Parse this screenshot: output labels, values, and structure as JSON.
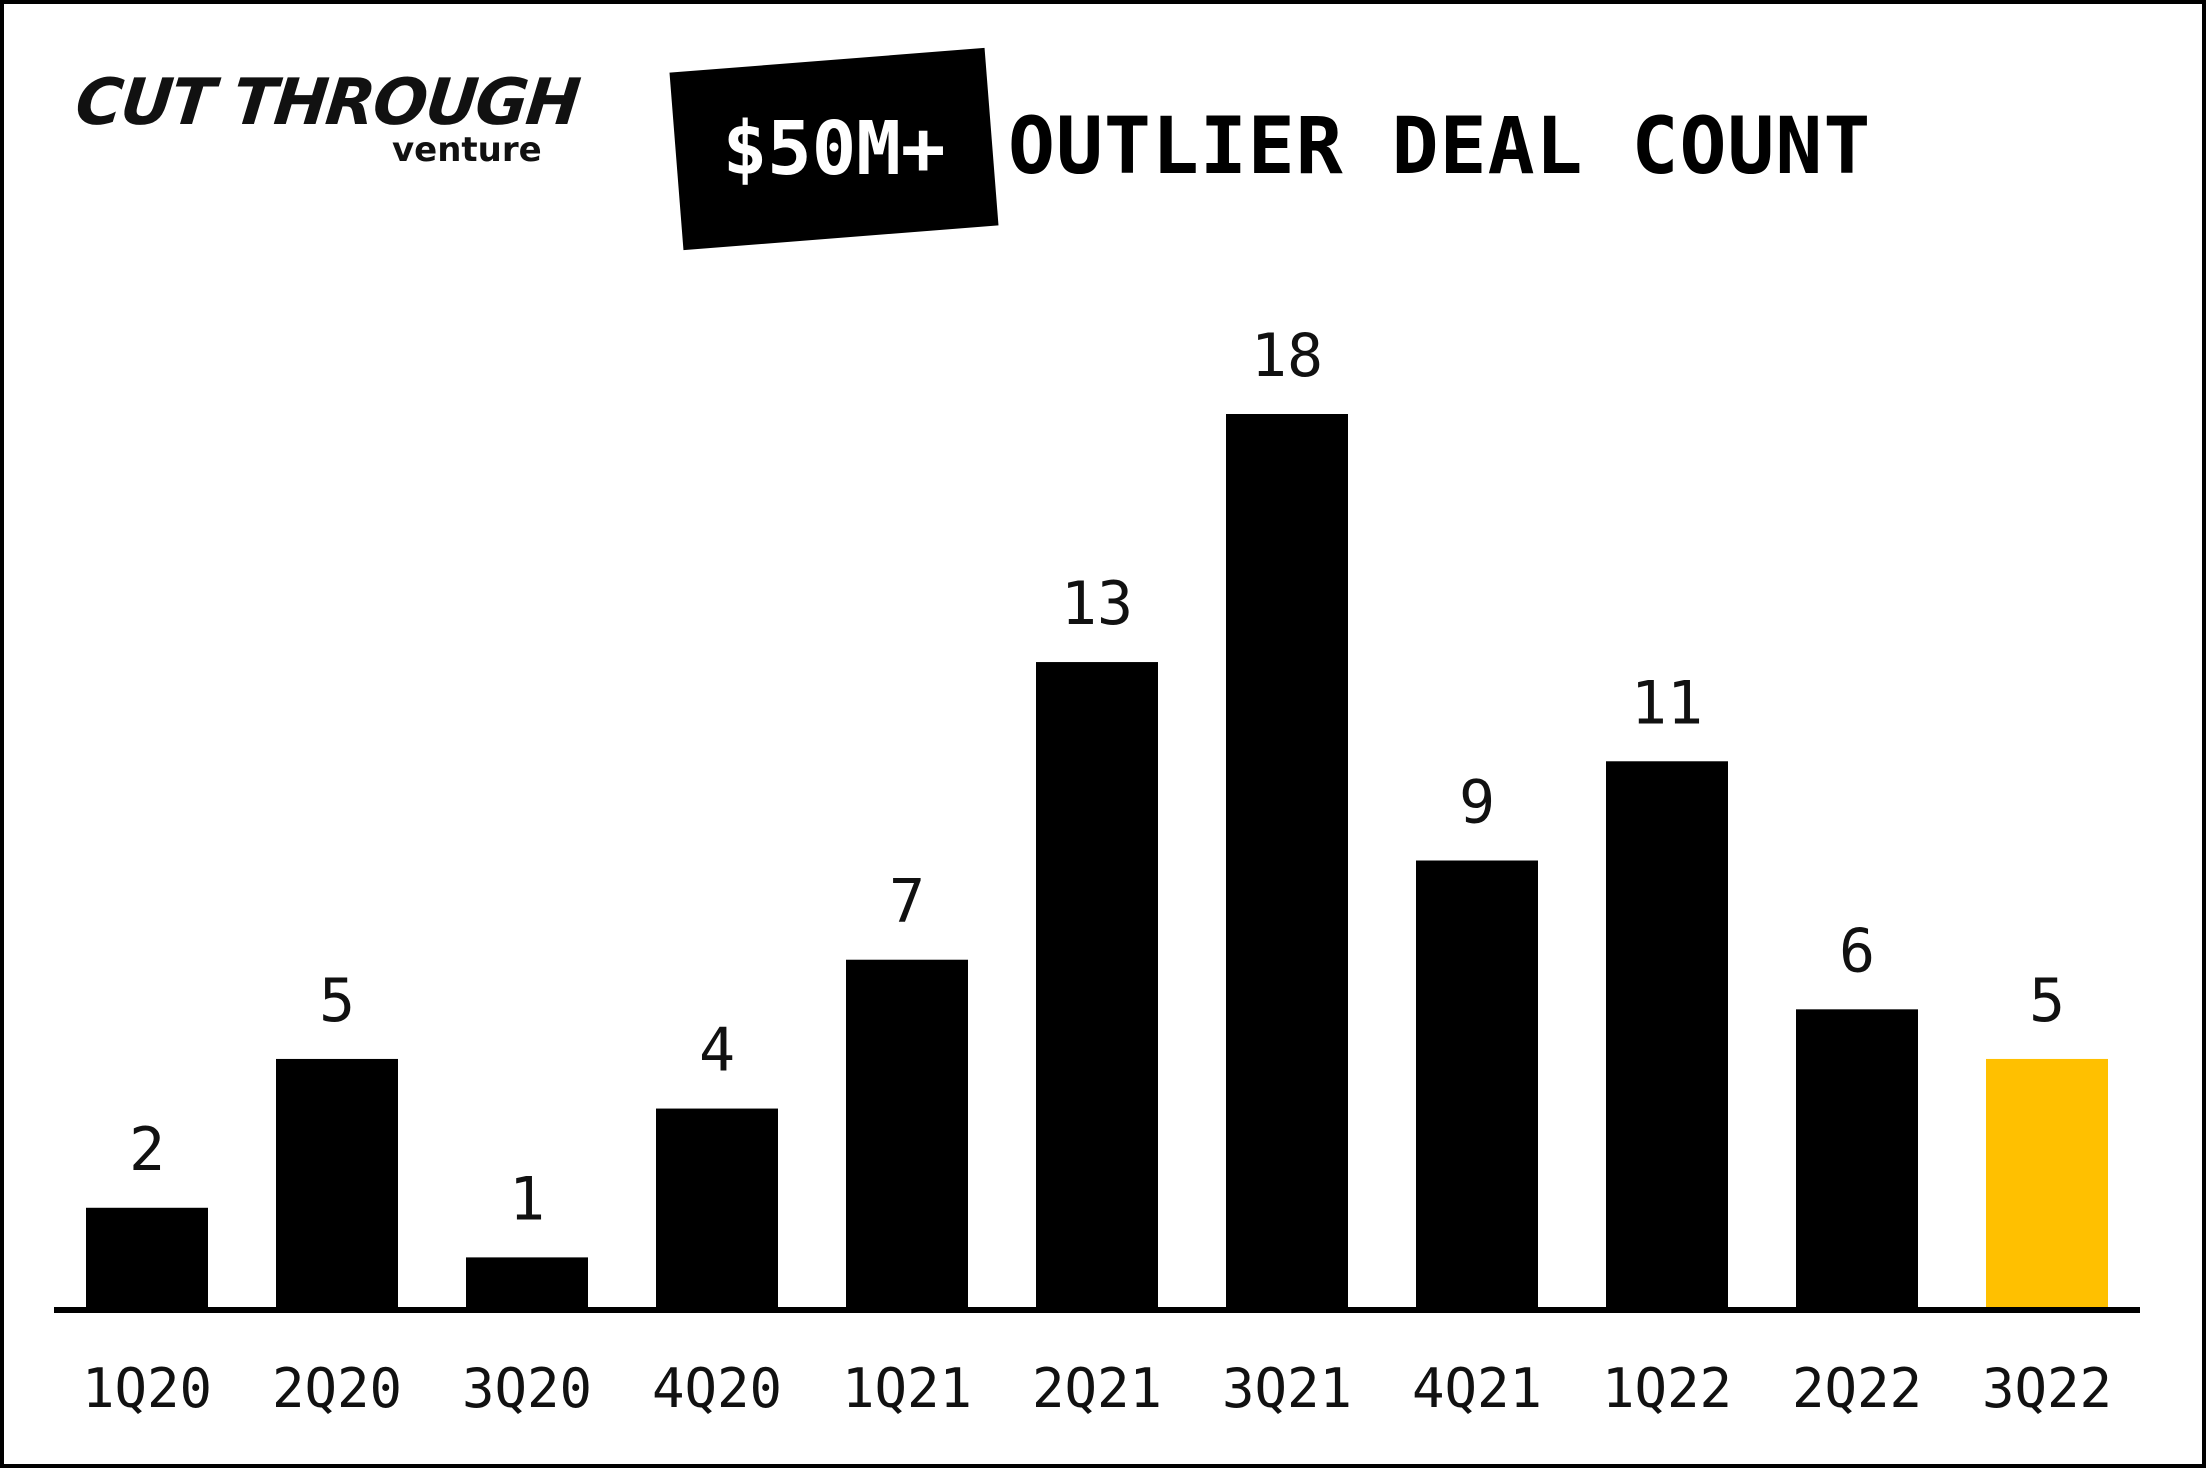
{
  "logo": {
    "main": "CUT THROUGH",
    "sub": "venture"
  },
  "title": {
    "badge": "$50M+",
    "rest": "OUTLIER DEAL COUNT"
  },
  "colors": {
    "bar": "#000000",
    "highlight": "#FFC000",
    "background": "#FFFFFF"
  },
  "chart_data": {
    "type": "bar",
    "title": "$50M+ OUTLIER DEAL COUNT",
    "categories": [
      "1Q20",
      "2Q20",
      "3Q20",
      "4Q20",
      "1Q21",
      "2Q21",
      "3Q21",
      "4Q21",
      "1Q22",
      "2Q22",
      "3Q22"
    ],
    "values": [
      2,
      5,
      1,
      4,
      7,
      13,
      18,
      9,
      11,
      6,
      5
    ],
    "highlighted_category": "3Q22",
    "data_labels": true,
    "grid": false,
    "ylim": [
      0,
      18
    ]
  }
}
